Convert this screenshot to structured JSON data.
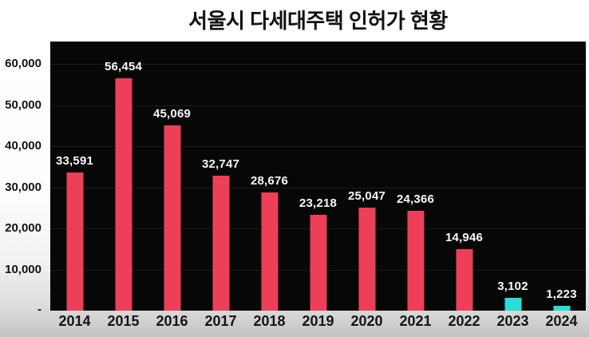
{
  "title": "서울시 다세대주택 인허가 현황",
  "colors": {
    "bar_default": "#ee3f58",
    "bar_highlight": "#29ded4",
    "plot_background": "#070707",
    "gridline": "#1d1d1d",
    "axis_text": "#121212",
    "value_text": "#f7f7f7",
    "page_background": "#ffffff",
    "page_background_bottom": "#c3c3c3"
  },
  "y_axis": {
    "tick_labels": [
      "60,000",
      "50,000",
      "40,000",
      "30,000",
      "20,000",
      "10,000"
    ],
    "tick_values": [
      60000,
      50000,
      40000,
      30000,
      20000,
      10000
    ],
    "zero_label": "-",
    "max": 60000,
    "tick_interval": 10000
  },
  "chart_data": {
    "type": "bar",
    "title": "서울시 다세대주택 인허가 현황",
    "categories": [
      "2014",
      "2015",
      "2016",
      "2017",
      "2018",
      "2019",
      "2020",
      "2021",
      "2022",
      "2023",
      "2024"
    ],
    "values": [
      33591,
      56454,
      45069,
      32747,
      28676,
      23218,
      25047,
      24366,
      14946,
      3102,
      1223
    ],
    "value_labels": [
      "33,591",
      "56,454",
      "45,069",
      "32,747",
      "28,676",
      "23,218",
      "25,047",
      "24,366",
      "14,946",
      "3,102",
      "1,223"
    ],
    "bar_colors": [
      "#ee3f58",
      "#ee3f58",
      "#ee3f58",
      "#ee3f58",
      "#ee3f58",
      "#ee3f58",
      "#ee3f58",
      "#ee3f58",
      "#ee3f58",
      "#29ded4",
      "#29ded4"
    ],
    "highlight_categories": [
      "2023",
      "2024"
    ],
    "xlabel": "",
    "ylabel": "",
    "ylim": [
      0,
      60000
    ],
    "grid": true,
    "legend": false,
    "plot_style": "dark-panel-on-light-page"
  }
}
